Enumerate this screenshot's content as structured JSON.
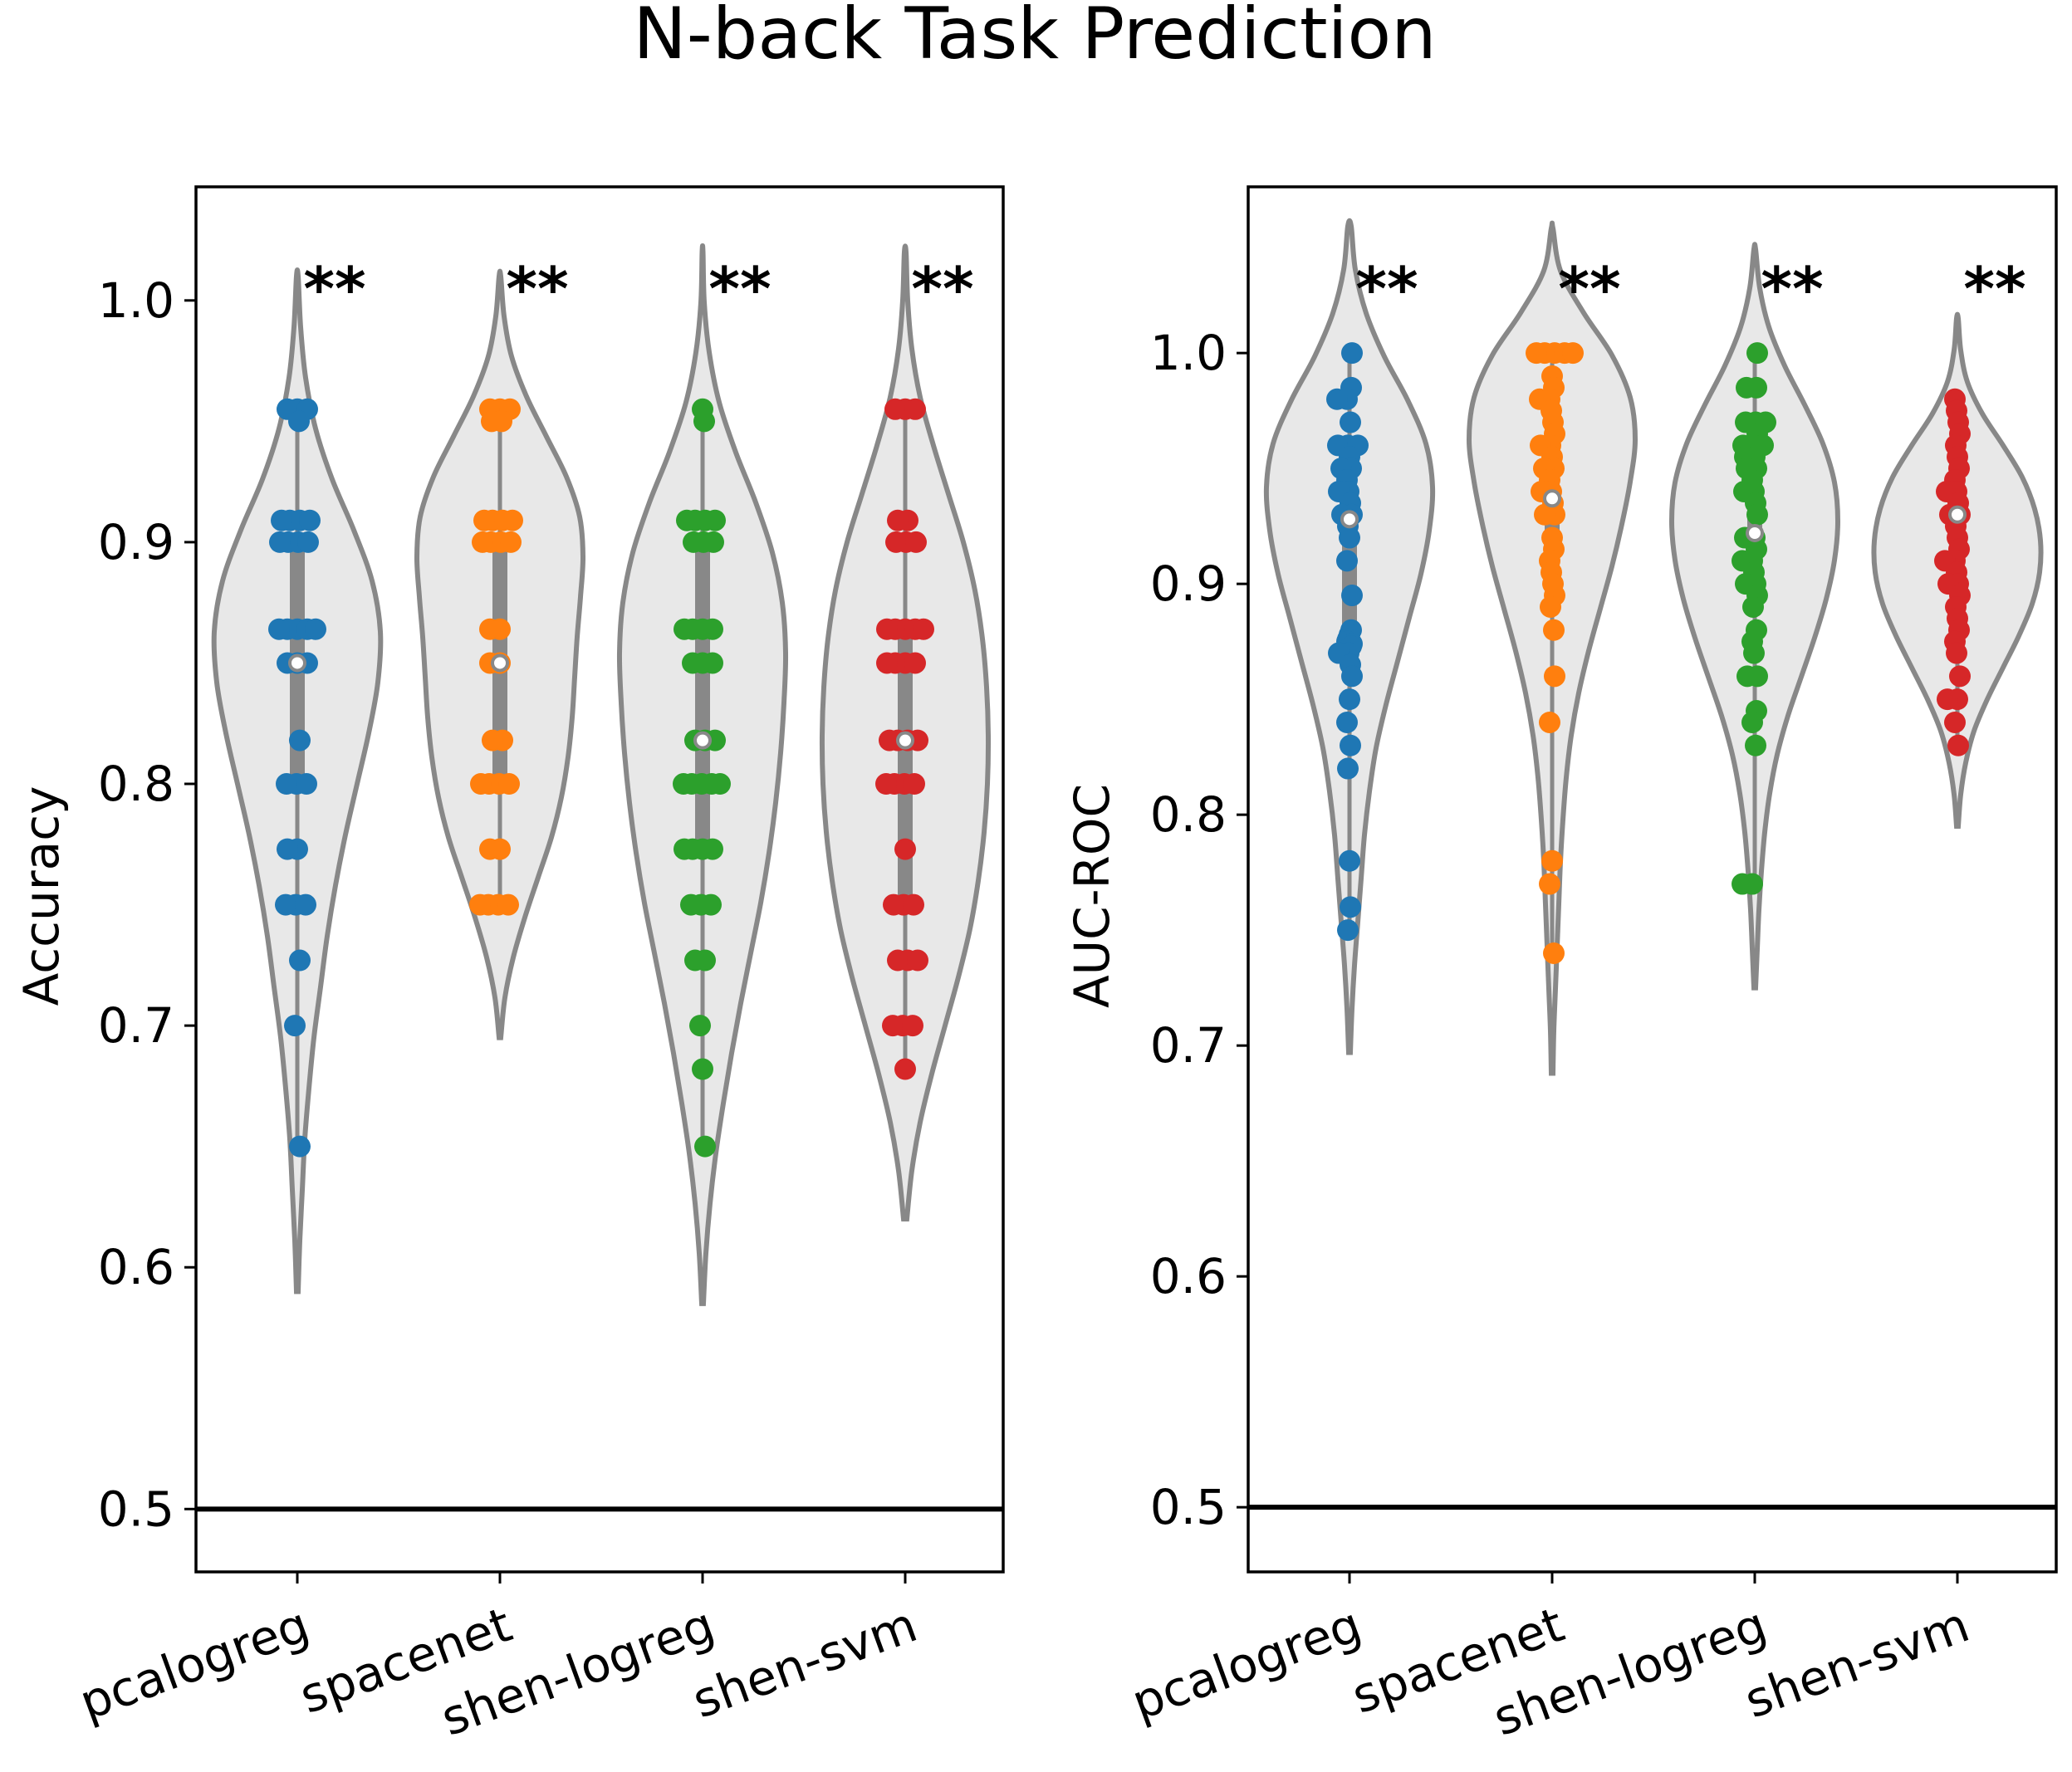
{
  "figure_title": "N-back Task Prediction",
  "chart_data": [
    {
      "type": "violin",
      "title": "",
      "xlabel": "",
      "ylabel": "Accuracy",
      "ylim": [
        0.474,
        1.047
      ],
      "yticks": [
        "0.5",
        "0.6",
        "0.7",
        "0.8",
        "0.9",
        "1.0"
      ],
      "categories": [
        "pcalogreg",
        "spacenet",
        "shen-logreg",
        "shen-svm"
      ],
      "reference_line": 0.5,
      "grid": false,
      "series": [
        {
          "category": "pcalogreg",
          "color": "#1f77b4",
          "significance": "**",
          "median": 0.85,
          "q1": 0.8,
          "q3": 0.9,
          "whisker": [
            0.65,
            0.955
          ],
          "kde_range": [
            0.59,
            1.01
          ],
          "kde": [
            0.01,
            0.03,
            0.06,
            0.09,
            0.14,
            0.2,
            0.28,
            0.36,
            0.46,
            0.58,
            0.72,
            0.86,
            0.97,
            1.0,
            0.9,
            0.68,
            0.42,
            0.22,
            0.1,
            0.04,
            0.01
          ],
          "points": [
            0.955,
            0.955,
            0.955,
            0.95,
            0.909,
            0.909,
            0.909,
            0.909,
            0.9,
            0.9,
            0.9,
            0.9,
            0.864,
            0.864,
            0.864,
            0.864,
            0.864,
            0.85,
            0.85,
            0.85,
            0.818,
            0.8,
            0.8,
            0.8,
            0.773,
            0.773,
            0.75,
            0.75,
            0.75,
            0.727,
            0.7,
            0.65
          ]
        },
        {
          "category": "spacenet",
          "color": "#ff7f0e",
          "significance": "**",
          "median": 0.85,
          "q1": 0.8,
          "q3": 0.9,
          "whisker": [
            0.75,
            0.955
          ],
          "kde_range": [
            0.695,
            1.01
          ],
          "kde": [
            0.01,
            0.06,
            0.16,
            0.3,
            0.46,
            0.62,
            0.74,
            0.82,
            0.87,
            0.9,
            0.93,
            0.97,
            1.0,
            0.96,
            0.8,
            0.56,
            0.32,
            0.14,
            0.05,
            0.01
          ],
          "points": [
            0.955,
            0.955,
            0.955,
            0.95,
            0.95,
            0.909,
            0.909,
            0.909,
            0.909,
            0.9,
            0.9,
            0.9,
            0.9,
            0.864,
            0.864,
            0.85,
            0.85,
            0.818,
            0.818,
            0.8,
            0.8,
            0.8,
            0.8,
            0.773,
            0.773,
            0.75,
            0.75,
            0.75,
            0.75
          ]
        },
        {
          "category": "shen-logreg",
          "color": "#2ca02c",
          "significance": "**",
          "median": 0.818,
          "q1": 0.773,
          "q3": 0.9,
          "whisker": [
            0.65,
            0.955
          ],
          "kde_range": [
            0.585,
            1.02
          ],
          "kde": [
            0.01,
            0.04,
            0.09,
            0.16,
            0.25,
            0.35,
            0.46,
            0.58,
            0.7,
            0.8,
            0.88,
            0.94,
            0.98,
            1.0,
            0.96,
            0.84,
            0.64,
            0.4,
            0.2,
            0.08,
            0.02,
            0.005
          ],
          "points": [
            0.955,
            0.95,
            0.909,
            0.909,
            0.909,
            0.909,
            0.9,
            0.9,
            0.9,
            0.864,
            0.864,
            0.864,
            0.864,
            0.85,
            0.85,
            0.85,
            0.818,
            0.818,
            0.818,
            0.8,
            0.8,
            0.8,
            0.8,
            0.8,
            0.773,
            0.773,
            0.773,
            0.773,
            0.75,
            0.75,
            0.75,
            0.727,
            0.727,
            0.7,
            0.682,
            0.65
          ]
        },
        {
          "category": "shen-svm",
          "color": "#d62728",
          "significance": "**",
          "median": 0.818,
          "q1": 0.75,
          "q3": 0.864,
          "whisker": [
            0.682,
            0.955
          ],
          "kde_range": [
            0.62,
            1.02
          ],
          "kde": [
            0.02,
            0.08,
            0.18,
            0.32,
            0.48,
            0.64,
            0.78,
            0.88,
            0.95,
            0.99,
            1.0,
            0.98,
            0.93,
            0.84,
            0.7,
            0.52,
            0.34,
            0.18,
            0.08,
            0.03,
            0.01
          ],
          "points": [
            0.955,
            0.955,
            0.955,
            0.909,
            0.909,
            0.9,
            0.9,
            0.9,
            0.864,
            0.864,
            0.864,
            0.864,
            0.864,
            0.85,
            0.85,
            0.85,
            0.85,
            0.818,
            0.818,
            0.818,
            0.818,
            0.8,
            0.8,
            0.8,
            0.8,
            0.773,
            0.75,
            0.75,
            0.75,
            0.727,
            0.727,
            0.727,
            0.7,
            0.7,
            0.7,
            0.682
          ]
        }
      ]
    },
    {
      "type": "violin",
      "title": "",
      "xlabel": "",
      "ylabel": "AUC-ROC",
      "ylim": [
        0.472,
        1.072
      ],
      "yticks": [
        "0.5",
        "0.6",
        "0.7",
        "0.8",
        "0.9",
        "1.0"
      ],
      "categories": [
        "pcalogreg",
        "spacenet",
        "shen-logreg",
        "shen-svm"
      ],
      "reference_line": 0.5,
      "grid": false,
      "series": [
        {
          "category": "pcalogreg",
          "color": "#1f77b4",
          "significance": "**",
          "median": 0.928,
          "q1": 0.875,
          "q3": 0.955,
          "whisker": [
            0.75,
            1.0
          ],
          "kde_range": [
            0.697,
            1.055
          ],
          "kde": [
            0.01,
            0.03,
            0.06,
            0.1,
            0.14,
            0.18,
            0.24,
            0.32,
            0.44,
            0.58,
            0.72,
            0.86,
            0.96,
            1.0,
            0.92,
            0.7,
            0.42,
            0.2,
            0.07,
            0.02
          ],
          "points": [
            1.0,
            0.985,
            0.98,
            0.98,
            0.97,
            0.96,
            0.96,
            0.96,
            0.955,
            0.95,
            0.95,
            0.945,
            0.94,
            0.94,
            0.935,
            0.93,
            0.93,
            0.925,
            0.92,
            0.91,
            0.895,
            0.88,
            0.878,
            0.876,
            0.875,
            0.874,
            0.873,
            0.87,
            0.87,
            0.865,
            0.86,
            0.85,
            0.84,
            0.83,
            0.82,
            0.78,
            0.76,
            0.75
          ]
        },
        {
          "category": "spacenet",
          "color": "#ff7f0e",
          "significance": "**",
          "median": 0.937,
          "q1": 0.9,
          "q3": 0.98,
          "whisker": [
            0.74,
            1.0
          ],
          "kde_range": [
            0.688,
            1.054
          ],
          "kde": [
            0.01,
            0.02,
            0.04,
            0.06,
            0.08,
            0.1,
            0.13,
            0.17,
            0.23,
            0.32,
            0.44,
            0.58,
            0.72,
            0.84,
            0.94,
            1.0,
            0.94,
            0.72,
            0.38,
            0.1,
            0.01
          ],
          "points": [
            1.0,
            1.0,
            1.0,
            1.0,
            1.0,
            0.99,
            0.985,
            0.98,
            0.98,
            0.975,
            0.97,
            0.965,
            0.96,
            0.96,
            0.955,
            0.95,
            0.95,
            0.945,
            0.94,
            0.94,
            0.935,
            0.93,
            0.93,
            0.92,
            0.915,
            0.91,
            0.905,
            0.9,
            0.895,
            0.89,
            0.88,
            0.86,
            0.84,
            0.78,
            0.77,
            0.74
          ]
        },
        {
          "category": "shen-logreg",
          "color": "#2ca02c",
          "significance": "**",
          "median": 0.922,
          "q1": 0.89,
          "q3": 0.955,
          "whisker": [
            0.77,
            1.0
          ],
          "kde_range": [
            0.725,
            1.045
          ],
          "kde": [
            0.01,
            0.03,
            0.05,
            0.08,
            0.12,
            0.18,
            0.27,
            0.4,
            0.56,
            0.72,
            0.86,
            0.96,
            1.0,
            0.96,
            0.82,
            0.6,
            0.36,
            0.17,
            0.06,
            0.01
          ],
          "points": [
            1.0,
            0.985,
            0.985,
            0.97,
            0.97,
            0.97,
            0.965,
            0.96,
            0.96,
            0.96,
            0.955,
            0.955,
            0.95,
            0.95,
            0.945,
            0.94,
            0.94,
            0.935,
            0.93,
            0.92,
            0.92,
            0.915,
            0.91,
            0.91,
            0.905,
            0.9,
            0.9,
            0.895,
            0.89,
            0.88,
            0.875,
            0.87,
            0.86,
            0.86,
            0.845,
            0.84,
            0.83,
            0.77,
            0.77
          ]
        },
        {
          "category": "shen-svm",
          "color": "#d62728",
          "significance": "**",
          "median": 0.93,
          "q1": 0.89,
          "q3": 0.96,
          "whisker": [
            0.83,
            0.98
          ],
          "kde_range": [
            0.795,
            1.015
          ],
          "kde": [
            0.01,
            0.04,
            0.1,
            0.2,
            0.36,
            0.55,
            0.74,
            0.9,
            0.99,
            1.0,
            0.93,
            0.78,
            0.55,
            0.3,
            0.12,
            0.04,
            0.01
          ],
          "points": [
            0.98,
            0.975,
            0.97,
            0.965,
            0.96,
            0.955,
            0.95,
            0.945,
            0.94,
            0.94,
            0.935,
            0.93,
            0.93,
            0.925,
            0.92,
            0.915,
            0.91,
            0.91,
            0.905,
            0.9,
            0.9,
            0.895,
            0.89,
            0.885,
            0.88,
            0.875,
            0.87,
            0.86,
            0.85,
            0.85,
            0.84,
            0.83
          ]
        }
      ]
    }
  ]
}
